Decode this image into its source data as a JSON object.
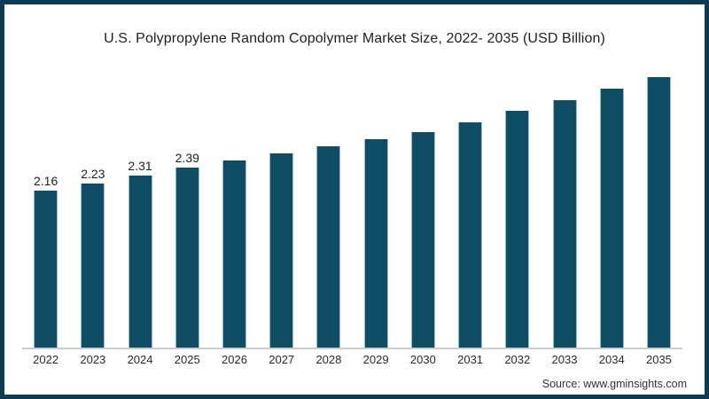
{
  "source_label": "Source: www.gminsights.com",
  "colors": {
    "bar_fill": "#0E4D63",
    "bar_edge": "#8FBDD3",
    "frame_border": "#0D3B54",
    "axis_line": "#CCCCCC",
    "title_text": "#1F1F1F",
    "tick_text": "#2A2A2A",
    "source_text": "#333333",
    "background": "#FFFFFF"
  },
  "chart_data": {
    "type": "bar",
    "title": "U.S. Polypropylene Random Copolymer Market Size, 2022- 2035 (USD Billion)",
    "xlabel": "",
    "ylabel": "",
    "categories": [
      "2022",
      "2023",
      "2024",
      "2025",
      "2026",
      "2027",
      "2028",
      "2029",
      "2030",
      "2031",
      "2032",
      "2033",
      "2034",
      "2035"
    ],
    "values": [
      2.16,
      2.23,
      2.31,
      2.39,
      2.46,
      2.53,
      2.6,
      2.67,
      2.74,
      2.84,
      2.95,
      3.06,
      3.17,
      3.29
    ],
    "data_labels": [
      "2.16",
      "2.23",
      "2.31",
      "2.39",
      "",
      "",
      "",
      "",
      "",
      "",
      "",
      "",
      "",
      ""
    ],
    "ylim": [
      0.59,
      3.35
    ],
    "grid": false,
    "legend": false,
    "y_axis_shown": false
  }
}
